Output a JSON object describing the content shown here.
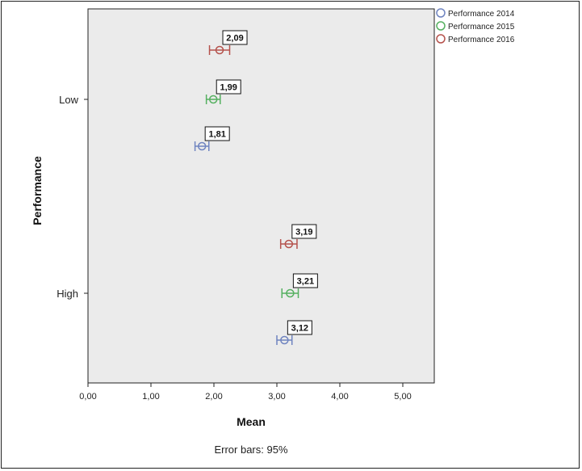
{
  "chart_data": {
    "type": "scatter",
    "subtype": "error-bar",
    "orientation": "horizontal",
    "xlabel": "Mean",
    "ylabel": "Performance",
    "footnote": "Error bars: 95%",
    "xlim": [
      0,
      5.5
    ],
    "x_ticks": [
      0,
      1,
      2,
      3,
      4,
      5
    ],
    "x_tick_labels": [
      "0,00",
      "1,00",
      "2,00",
      "3,00",
      "4,00",
      "5,00"
    ],
    "categories": [
      "Low",
      "High"
    ],
    "legend_position": "top-right",
    "background": "#ebebeb",
    "series": [
      {
        "name": "Performance 2014",
        "color": "#6f84c0",
        "values": [
          1.81,
          3.12
        ],
        "lower": [
          1.7,
          3.0
        ],
        "upper": [
          1.92,
          3.24
        ],
        "labels": [
          "1,81",
          "3,12"
        ]
      },
      {
        "name": "Performance 2015",
        "color": "#55b060",
        "values": [
          1.99,
          3.21
        ],
        "lower": [
          1.88,
          3.08
        ],
        "upper": [
          2.1,
          3.34
        ],
        "labels": [
          "1,99",
          "3,21"
        ]
      },
      {
        "name": "Performance 2016",
        "color": "#b5524c",
        "values": [
          2.09,
          3.19
        ],
        "lower": [
          1.93,
          3.06
        ],
        "upper": [
          2.25,
          3.32
        ],
        "labels": [
          "2,09",
          "3,19"
        ]
      }
    ]
  }
}
